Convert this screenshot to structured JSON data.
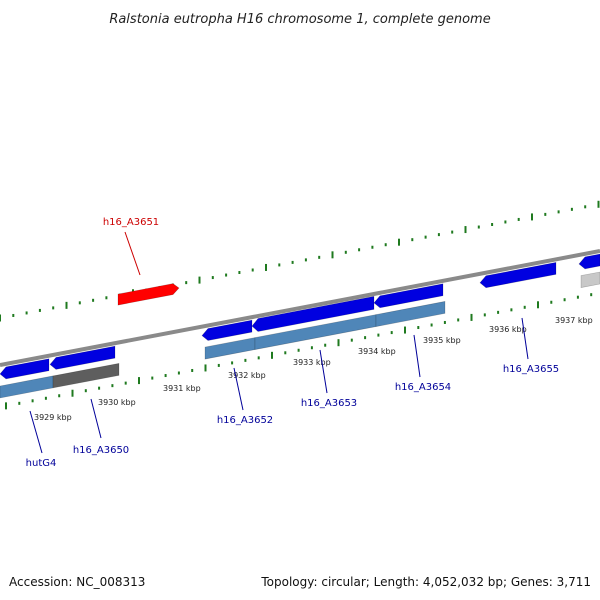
{
  "title": "Ralstonia eutropha H16 chromosome 1, complete genome",
  "footer": {
    "accession": "Accession: NC_008313",
    "topology": "Topology: circular; Length: 4,052,032 bp; Genes: 3,711"
  },
  "colors": {
    "backbone": "#8a8a8a",
    "tick": "#1f7a1f",
    "gene_blue": "#0000e0",
    "gene_red": "#ff0000",
    "gene_steel": "#4f86b8",
    "gene_dark": "#5e5e5e",
    "gene_light": "#c8c8c8",
    "label_blue": "#000099",
    "label_red": "#cc0000"
  },
  "kbp_labels": [
    "3929 kbp",
    "3930 kbp",
    "3931 kbp",
    "3932 kbp",
    "3933 kbp",
    "3934 kbp",
    "3935 kbp",
    "3936 kbp",
    "3937 kbp"
  ],
  "gene_labels": [
    {
      "name": "h16_A3651",
      "color": "red"
    },
    {
      "name": "hutG4",
      "color": "blue"
    },
    {
      "name": "h16_A3650",
      "color": "blue"
    },
    {
      "name": "h16_A3652",
      "color": "blue"
    },
    {
      "name": "h16_A3653",
      "color": "blue"
    },
    {
      "name": "h16_A3654",
      "color": "blue"
    },
    {
      "name": "h16_A3655",
      "color": "blue"
    }
  ]
}
